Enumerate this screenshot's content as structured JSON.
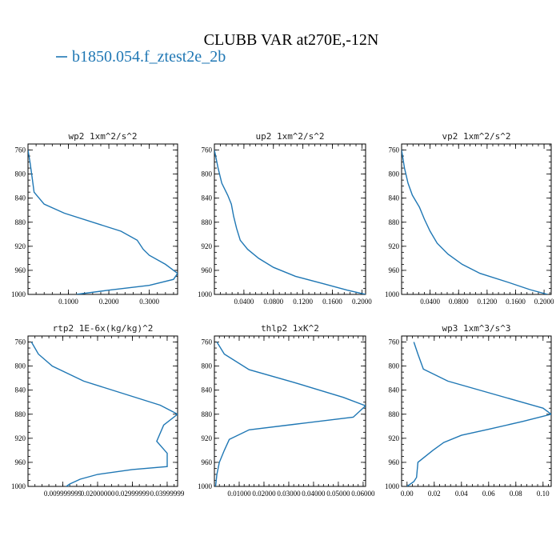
{
  "figure": {
    "title": "CLUBB VAR at270E,-12N",
    "legend": [
      {
        "label": "b1850.054.f_ztest2e_2b",
        "color": "#1f77b4"
      }
    ]
  },
  "chart_data": [
    {
      "type": "line",
      "title": "wp2   1xm^2/s^2",
      "xlim": [
        0,
        0.37
      ],
      "xticks": [
        0.1,
        0.2,
        0.3
      ],
      "xtick_labels": [
        "0.1000",
        "0.2000",
        "0.3000"
      ],
      "ylim": [
        1000,
        750
      ],
      "yticks": [
        760,
        800,
        840,
        880,
        920,
        960,
        1000
      ],
      "series": [
        {
          "color": "#1f77b4",
          "x": [
            0.0,
            0.005,
            0.01,
            0.015,
            0.04,
            0.09,
            0.23,
            0.27,
            0.285,
            0.3,
            0.34,
            0.37,
            0.36,
            0.3,
            0.2,
            0.12
          ],
          "y": [
            760,
            780,
            805,
            830,
            850,
            865,
            895,
            910,
            925,
            935,
            950,
            965,
            975,
            985,
            993,
            1000
          ]
        }
      ]
    },
    {
      "type": "line",
      "title": "up2   1xm^2/s^2",
      "xlim": [
        0,
        0.205
      ],
      "xticks": [
        0.04,
        0.08,
        0.12,
        0.16,
        0.2
      ],
      "xtick_labels": [
        "0.0400",
        "0.0800",
        "0.1200",
        "0.1600",
        "0.2000"
      ],
      "ylim": [
        1000,
        750
      ],
      "yticks": [
        760,
        800,
        840,
        880,
        920,
        960,
        1000
      ],
      "series": [
        {
          "color": "#1f77b4",
          "x": [
            0.0,
            0.005,
            0.01,
            0.018,
            0.023,
            0.026,
            0.03,
            0.035,
            0.045,
            0.06,
            0.08,
            0.11,
            0.15,
            0.18,
            0.205
          ],
          "y": [
            760,
            790,
            815,
            835,
            850,
            870,
            890,
            910,
            925,
            940,
            955,
            970,
            983,
            993,
            1000
          ]
        }
      ]
    },
    {
      "type": "line",
      "title": "vp2   1xm^2/s^2",
      "xlim": [
        0,
        0.21
      ],
      "xticks": [
        0.04,
        0.08,
        0.12,
        0.16,
        0.2
      ],
      "xtick_labels": [
        "0.0400",
        "0.0800",
        "0.1200",
        "0.1600",
        "0.2000"
      ],
      "ylim": [
        1000,
        750
      ],
      "yticks": [
        760,
        800,
        840,
        880,
        920,
        960,
        1000
      ],
      "series": [
        {
          "color": "#1f77b4",
          "x": [
            0.0,
            0.004,
            0.009,
            0.015,
            0.025,
            0.032,
            0.04,
            0.05,
            0.065,
            0.085,
            0.11,
            0.15,
            0.18,
            0.205
          ],
          "y": [
            760,
            790,
            815,
            835,
            855,
            875,
            895,
            915,
            933,
            950,
            965,
            980,
            992,
            1000
          ]
        }
      ]
    },
    {
      "type": "line",
      "title": "rtp2   1E-6x(kg/kg)^2",
      "xlim": [
        0,
        0.043
      ],
      "xticks": [
        0.01,
        0.02,
        0.03,
        0.04
      ],
      "xtick_labels": [
        "0.009999999",
        "0.02000000",
        "0.02999999",
        "0.03999999"
      ],
      "ylim": [
        1000,
        750
      ],
      "yticks": [
        760,
        800,
        840,
        880,
        920,
        960,
        1000
      ],
      "series": [
        {
          "color": "#1f77b4",
          "x": [
            0.001,
            0.003,
            0.007,
            0.016,
            0.038,
            0.043,
            0.039,
            0.037,
            0.04,
            0.04,
            0.03,
            0.02,
            0.015,
            0.012,
            0.011,
            0.016
          ],
          "y": [
            760,
            780,
            800,
            825,
            865,
            880,
            898,
            925,
            945,
            967,
            972,
            980,
            988,
            996,
            1000,
            1003
          ]
        }
      ]
    },
    {
      "type": "line",
      "title": "thlp2   1xK^2",
      "xlim": [
        0,
        0.061
      ],
      "xticks": [
        0.01,
        0.02,
        0.03,
        0.04,
        0.05,
        0.06
      ],
      "xtick_labels": [
        "0.01000",
        "0.02000",
        "0.03000",
        "0.04000",
        "0.05000",
        "0.06000"
      ],
      "ylim": [
        1000,
        750
      ],
      "yticks": [
        760,
        800,
        840,
        880,
        920,
        960,
        1000
      ],
      "series": [
        {
          "color": "#1f77b4",
          "x": [
            0.001,
            0.004,
            0.014,
            0.032,
            0.052,
            0.061,
            0.056,
            0.032,
            0.014,
            0.006,
            0.004,
            0.002,
            0.001,
            0.0005
          ],
          "y": [
            760,
            780,
            806,
            827,
            852,
            866,
            885,
            897,
            906,
            922,
            940,
            960,
            980,
            1000
          ]
        }
      ]
    },
    {
      "type": "line",
      "title": "wp3   1xm^3/s^3",
      "xlim": [
        -0.004,
        0.106
      ],
      "xticks": [
        0.0,
        0.02,
        0.04,
        0.06,
        0.08,
        0.1
      ],
      "xtick_labels": [
        "0.00",
        "0.02",
        "0.04",
        "0.06",
        "0.08",
        "0.10"
      ],
      "ylim": [
        1000,
        750
      ],
      "yticks": [
        760,
        800,
        840,
        880,
        920,
        960,
        1000
      ],
      "series": [
        {
          "color": "#1f77b4",
          "x": [
            0.005,
            0.008,
            0.012,
            0.03,
            0.1,
            0.106,
            0.085,
            0.06,
            0.04,
            0.027,
            0.019,
            0.008,
            0.007,
            0.005,
            0.0
          ],
          "y": [
            760,
            780,
            805,
            825,
            870,
            880,
            892,
            905,
            915,
            927,
            940,
            960,
            985,
            992,
            1000
          ]
        }
      ]
    }
  ]
}
